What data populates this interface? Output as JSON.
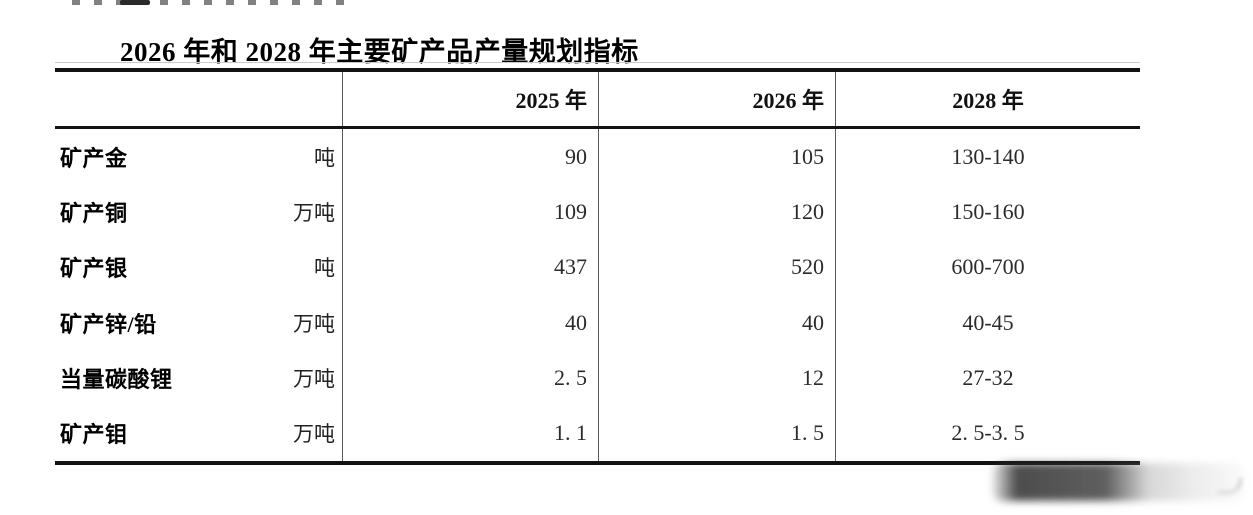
{
  "title": "2026 年和 2028 年主要矿产品产量规划指标",
  "table": {
    "columns": [
      "2025 年",
      "2026 年",
      "2028 年"
    ],
    "rows": [
      {
        "name": "矿产金",
        "unit": "吨",
        "y2025": "90",
        "y2026": "105",
        "y2028": "130-140"
      },
      {
        "name": "矿产铜",
        "unit": "万吨",
        "y2025": "109",
        "y2026": "120",
        "y2028": "150-160"
      },
      {
        "name": "矿产银",
        "unit": "吨",
        "y2025": "437",
        "y2026": "520",
        "y2028": "600-700"
      },
      {
        "name": "矿产锌/铅",
        "unit": "万吨",
        "y2025": "40",
        "y2026": "40",
        "y2028": "40-45"
      },
      {
        "name": "当量碳酸锂",
        "unit": "万吨",
        "y2025": "2. 5",
        "y2026": "12",
        "y2028": "27-32"
      },
      {
        "name": "矿产钼",
        "unit": "万吨",
        "y2025": "1. 1",
        "y2026": "1. 5",
        "y2028": "2. 5-3. 5"
      }
    ]
  }
}
